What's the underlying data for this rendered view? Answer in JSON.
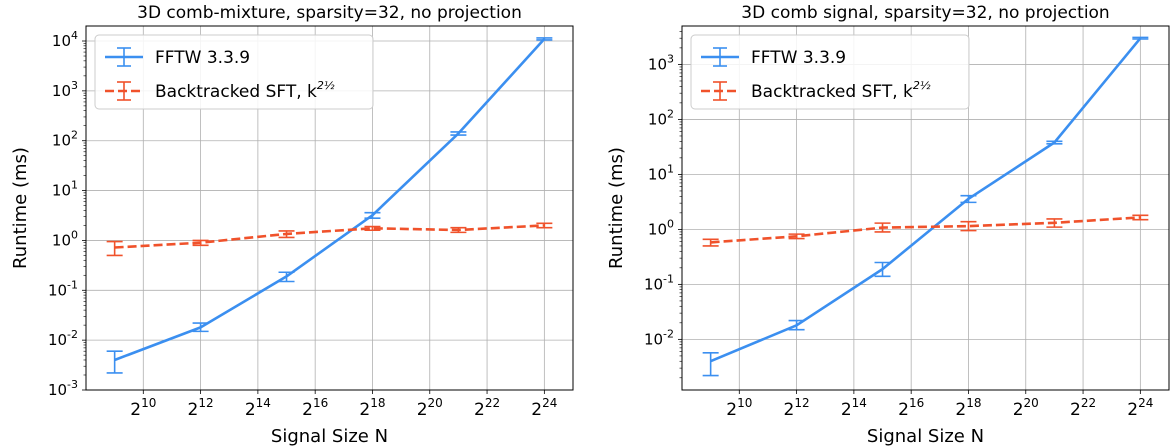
{
  "chart_data": [
    {
      "type": "line",
      "title": "3D comb-mixture, sparsity=32, no projection",
      "xlabel": "Signal Size N",
      "ylabel": "Runtime (ms)",
      "xscale": "log2",
      "yscale": "log10",
      "xlim": [
        256,
        33554432
      ],
      "ylim": [
        0.001,
        20000
      ],
      "x_ticks": [
        {
          "exp": "10",
          "value": 1024
        },
        {
          "exp": "12",
          "value": 4096
        },
        {
          "exp": "14",
          "value": 16384
        },
        {
          "exp": "16",
          "value": 65536
        },
        {
          "exp": "18",
          "value": 262144
        },
        {
          "exp": "20",
          "value": 1048576
        },
        {
          "exp": "22",
          "value": 4194304
        },
        {
          "exp": "24",
          "value": 16777216
        }
      ],
      "y_ticks": [
        {
          "exp": "-3",
          "value": 0.001
        },
        {
          "exp": "-2",
          "value": 0.01
        },
        {
          "exp": "-1",
          "value": 0.1
        },
        {
          "exp": "0",
          "value": 1
        },
        {
          "exp": "1",
          "value": 10
        },
        {
          "exp": "2",
          "value": 100
        },
        {
          "exp": "3",
          "value": 1000
        },
        {
          "exp": "4",
          "value": 10000
        }
      ],
      "grid": true,
      "legend_position": "top-left",
      "series": [
        {
          "name": "FFTW 3.3.9",
          "color": "#3b8ff0",
          "style": "solid",
          "x": [
            512,
            4096,
            32768,
            262144,
            2097152,
            16777216
          ],
          "y": [
            0.004,
            0.018,
            0.19,
            3.2,
            140,
            11000
          ],
          "err_low": [
            0.0022,
            0.015,
            0.15,
            2.8,
            130,
            10500
          ],
          "err_high": [
            0.006,
            0.022,
            0.23,
            3.6,
            150,
            11500
          ]
        },
        {
          "name": "Backtracked SFT, k",
          "name_exponent": "2^(1/2)",
          "color": "#f0522b",
          "style": "dashed",
          "x": [
            512,
            4096,
            32768,
            262144,
            2097152,
            16777216
          ],
          "y": [
            0.72,
            0.9,
            1.35,
            1.75,
            1.62,
            2.0
          ],
          "err_low": [
            0.5,
            0.8,
            1.15,
            1.6,
            1.45,
            1.8
          ],
          "err_high": [
            0.95,
            1.0,
            1.55,
            1.9,
            1.8,
            2.2
          ]
        }
      ]
    },
    {
      "type": "line",
      "title": "3D comb signal, sparsity=32, no projection",
      "xlabel": "Signal Size N",
      "ylabel": "Runtime (ms)",
      "xscale": "log2",
      "yscale": "log10",
      "xlim": [
        256,
        33554432
      ],
      "ylim": [
        0.0012,
        5000
      ],
      "x_ticks": [
        {
          "exp": "10",
          "value": 1024
        },
        {
          "exp": "12",
          "value": 4096
        },
        {
          "exp": "14",
          "value": 16384
        },
        {
          "exp": "16",
          "value": 65536
        },
        {
          "exp": "18",
          "value": 262144
        },
        {
          "exp": "20",
          "value": 1048576
        },
        {
          "exp": "22",
          "value": 4194304
        },
        {
          "exp": "24",
          "value": 16777216
        }
      ],
      "y_ticks": [
        {
          "exp": "-2",
          "value": 0.01
        },
        {
          "exp": "-1",
          "value": 0.1
        },
        {
          "exp": "0",
          "value": 1
        },
        {
          "exp": "1",
          "value": 10
        },
        {
          "exp": "2",
          "value": 100
        },
        {
          "exp": "3",
          "value": 1000
        }
      ],
      "grid": true,
      "legend_position": "top-left",
      "series": [
        {
          "name": "FFTW 3.3.9",
          "color": "#3b8ff0",
          "style": "solid",
          "x": [
            512,
            4096,
            32768,
            262144,
            2097152,
            16777216
          ],
          "y": [
            0.004,
            0.018,
            0.19,
            3.6,
            38,
            3000
          ],
          "err_low": [
            0.0022,
            0.015,
            0.14,
            3.1,
            36,
            2900
          ],
          "err_high": [
            0.0057,
            0.022,
            0.25,
            4.1,
            40,
            3100
          ]
        },
        {
          "name": "Backtracked SFT, k",
          "name_exponent": "2^(1/2)",
          "color": "#f0522b",
          "style": "dashed",
          "x": [
            512,
            4096,
            32768,
            262144,
            2097152,
            16777216
          ],
          "y": [
            0.58,
            0.75,
            1.08,
            1.15,
            1.32,
            1.65
          ],
          "err_low": [
            0.5,
            0.68,
            0.9,
            0.95,
            1.1,
            1.5
          ],
          "err_high": [
            0.66,
            0.82,
            1.3,
            1.38,
            1.55,
            1.8
          ]
        }
      ]
    }
  ]
}
